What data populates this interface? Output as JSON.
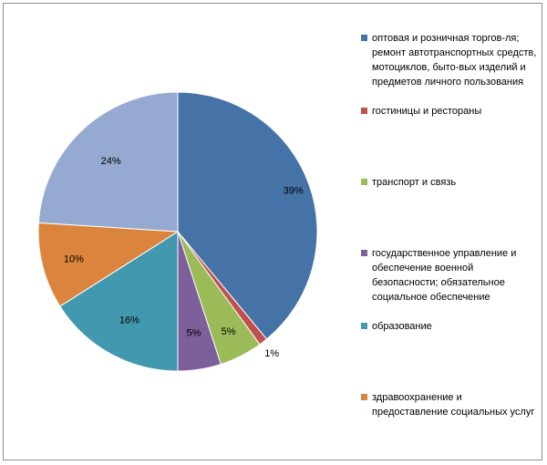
{
  "chart_data": {
    "type": "pie",
    "title": "",
    "categories": [
      "оптовая и розничная торгов-ля; ремонт автотранспортных средств, мотоциклов, быто-вых изделий и предметов личного пользования",
      "гостиницы и рестораны",
      "транспорт и  связь",
      "государственное управление и обеспечение военной безопасности; обязательное социальное обеспечение",
      "образование",
      "здравоохранение и предоставление социальных услуг",
      ""
    ],
    "values": [
      39,
      1,
      5,
      5,
      16,
      10,
      24
    ],
    "labels": [
      "39%",
      "1%",
      "5%",
      "5%",
      "16%",
      "10%",
      "24%"
    ],
    "colors": [
      "#4572A7",
      "#C0504D",
      "#9BBB59",
      "#7D5F9A",
      "#4198AF",
      "#DB843D",
      "#95A9D1"
    ],
    "legend": {
      "position": "right"
    }
  }
}
